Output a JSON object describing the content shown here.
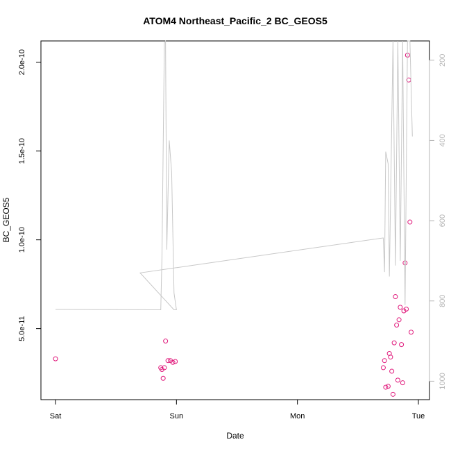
{
  "chart_data": {
    "type": "scatter",
    "title": "ATOM4 Northeast_Pacific_2 BC_GEOS5",
    "xlabel": "Date",
    "ylabel": "BC_GEOS5",
    "grid": false,
    "xlim": [
      0,
      3
    ],
    "ylim": [
      1e-11,
      2.12e-10
    ],
    "x_ticks": [
      {
        "value": 0,
        "label": "Sat"
      },
      {
        "value": 1,
        "label": "Sun"
      },
      {
        "value": 2,
        "label": "Mon"
      },
      {
        "value": 3,
        "label": "Tue"
      }
    ],
    "y_ticks": [
      {
        "value": 5e-11,
        "label": "5.0e-11"
      },
      {
        "value": 1e-10,
        "label": "1.0e-10"
      },
      {
        "value": 1.5e-10,
        "label": "1.5e-10"
      },
      {
        "value": 2e-10,
        "label": "2.0e-10"
      }
    ],
    "y2lim": [
      1046,
      152
    ],
    "y2_ticks": [
      {
        "value": 200,
        "label": "200"
      },
      {
        "value": 400,
        "label": "400"
      },
      {
        "value": 600,
        "label": "600"
      },
      {
        "value": 800,
        "label": "800"
      },
      {
        "value": 1000,
        "label": "1000"
      }
    ],
    "series": [
      {
        "marker": "circle-open",
        "color": "#e0177a",
        "axis": "left",
        "points": [
          [
            0.0,
            3.3e-11
          ],
          [
            0.87,
            2.8e-11
          ],
          [
            0.88,
            2.7e-11
          ],
          [
            0.89,
            2.2e-11
          ],
          [
            0.9,
            2.8e-11
          ],
          [
            0.91,
            4.3e-11
          ],
          [
            0.93,
            3.2e-11
          ],
          [
            0.95,
            3.2e-11
          ],
          [
            0.97,
            3.1e-11
          ],
          [
            0.99,
            3.15e-11
          ],
          [
            2.71,
            2.8e-11
          ],
          [
            2.72,
            3.2e-11
          ],
          [
            2.73,
            1.7e-11
          ],
          [
            2.75,
            1.75e-11
          ],
          [
            2.76,
            3.6e-11
          ],
          [
            2.77,
            3.4e-11
          ],
          [
            2.78,
            2.6e-11
          ],
          [
            2.79,
            1.3e-11
          ],
          [
            2.8,
            4.2e-11
          ],
          [
            2.81,
            6.8e-11
          ],
          [
            2.82,
            5.2e-11
          ],
          [
            2.83,
            2.1e-11
          ],
          [
            2.84,
            5.5e-11
          ],
          [
            2.85,
            6.2e-11
          ],
          [
            2.86,
            4.1e-11
          ],
          [
            2.87,
            1.95e-11
          ],
          [
            2.88,
            6e-11
          ],
          [
            2.89,
            8.7e-11
          ],
          [
            2.9,
            6.1e-11
          ],
          [
            2.91,
            2.04e-10
          ],
          [
            2.92,
            1.9e-10
          ],
          [
            2.93,
            1.1e-10
          ],
          [
            2.94,
            4.8e-11
          ]
        ]
      },
      {
        "marker": "line",
        "color": "#c8c8c8",
        "axis": "right",
        "points": [
          [
            0.0,
            821
          ],
          [
            0.87,
            822
          ],
          [
            0.88,
            692
          ],
          [
            0.9,
            155
          ],
          [
            0.91,
            152
          ],
          [
            0.92,
            672
          ],
          [
            0.94,
            400
          ],
          [
            0.96,
            480
          ],
          [
            0.98,
            780
          ],
          [
            1.0,
            822
          ],
          [
            0.98,
            822
          ],
          [
            0.7,
            730
          ],
          [
            2.71,
            643
          ],
          [
            2.72,
            728
          ],
          [
            2.73,
            428
          ],
          [
            2.75,
            458
          ],
          [
            2.76,
            739
          ],
          [
            2.79,
            152
          ],
          [
            2.81,
            712
          ],
          [
            2.83,
            152
          ],
          [
            2.85,
            700
          ],
          [
            2.87,
            152
          ],
          [
            2.89,
            810
          ],
          [
            2.91,
            152
          ],
          [
            2.93,
            152
          ],
          [
            2.95,
            390
          ]
        ]
      }
    ]
  }
}
